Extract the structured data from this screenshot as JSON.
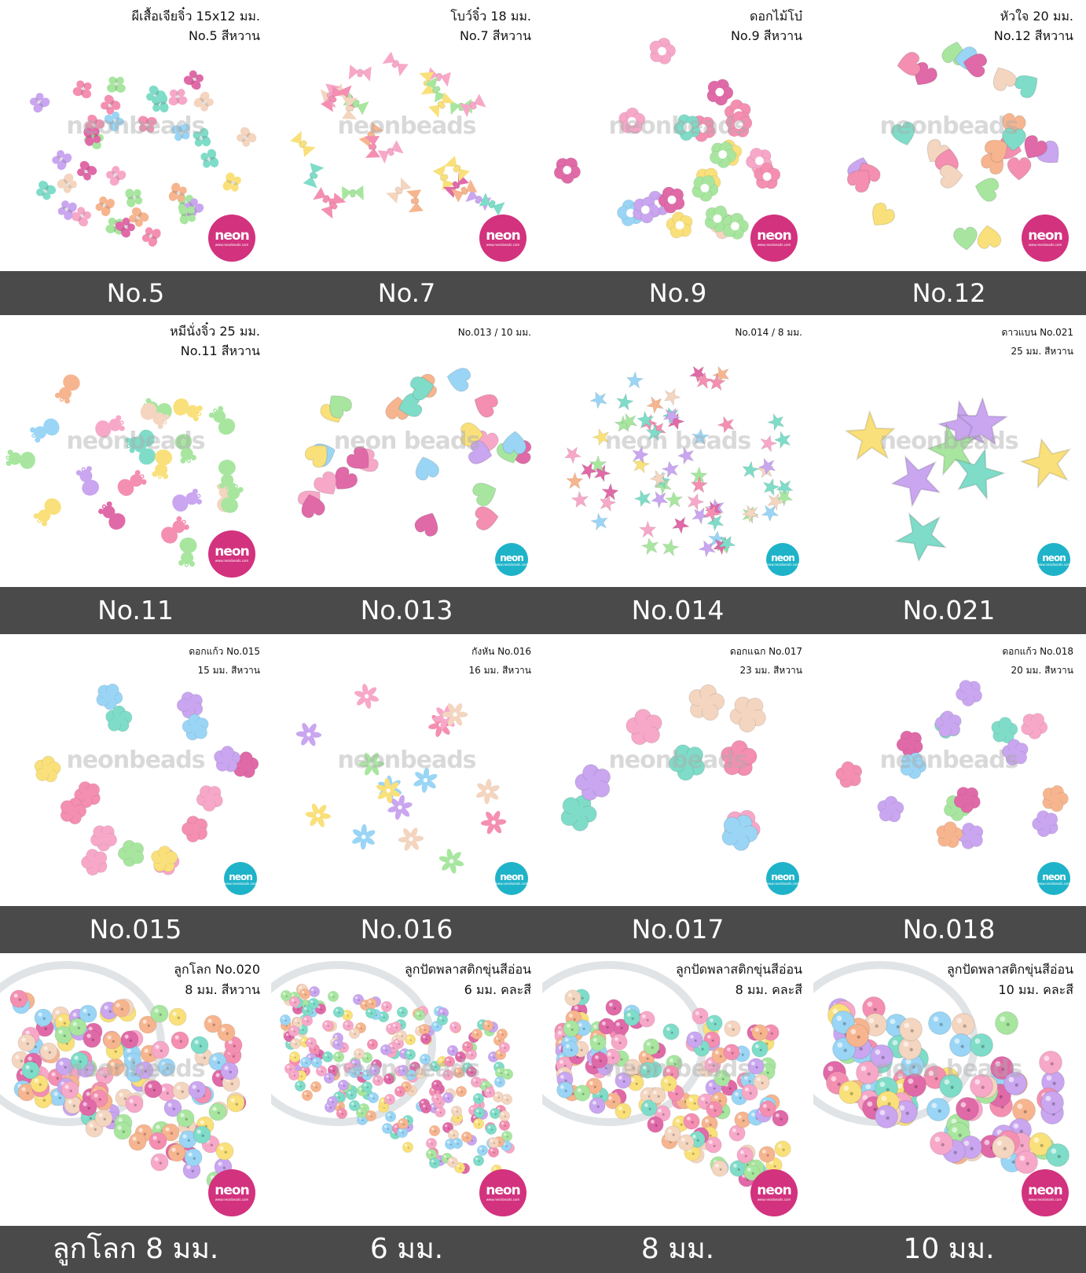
{
  "cells": [
    {
      "cap1": "ผีเสื้อเจียจิ๋ว 15x12 มม.",
      "cap2": "No.5 สีหวาน",
      "shape": "butterfly",
      "logo": "pink"
    },
    {
      "cap1": "โบว์จิ๋ว 18 มม.",
      "cap2": "No.7 สีหวาน",
      "shape": "bow",
      "logo": "pink"
    },
    {
      "cap1": "ดอกไม้โบ๋",
      "cap2": "No.9 สีหวาน",
      "shape": "ringflower",
      "logo": "pink"
    },
    {
      "cap1": "หัวใจ 20 มม.",
      "cap2": "No.12 สีหวาน",
      "shape": "heart",
      "logo": "pink"
    },
    {
      "cap1": "หมีนั่งจิ๋ว 25 มม.",
      "cap2": "No.11 สีหวาน",
      "shape": "bear",
      "logo": "pink"
    },
    {
      "cap1": "No.013 / 10 มม.",
      "cap2": "",
      "shape": "heart",
      "logo": "teal"
    },
    {
      "cap1": "No.014 / 8 มม.",
      "cap2": "",
      "shape": "star",
      "logo": "teal"
    },
    {
      "cap1": "ดาวแบน No.021",
      "cap2": "25 มม. สีหวาน",
      "shape": "bigstar",
      "logo": "teal"
    },
    {
      "cap1": "ดอกแก้ว No.015",
      "cap2": "15 มม. สีหวาน",
      "shape": "flower",
      "logo": "teal"
    },
    {
      "cap1": "กังหัน No.016",
      "cap2": "16 มม. สีหวาน",
      "shape": "spin",
      "logo": "teal"
    },
    {
      "cap1": "ดอกแฉก No.017",
      "cap2": "23 มม. สีหวาน",
      "shape": "bigflower",
      "logo": "teal"
    },
    {
      "cap1": "ดอกแก้ว No.018",
      "cap2": "20 มม. สีหวาน",
      "shape": "flower",
      "logo": "teal"
    },
    {
      "cap1": "ลูกโลก No.020",
      "cap2": "8 มม. สีหวาน",
      "shape": "ball",
      "logo": "pink"
    },
    {
      "cap1": "ลูกปัดพลาสติกขุ่นสีอ่อน",
      "cap2": "6 มม. คละสี",
      "shape": "ball",
      "logo": "pink"
    },
    {
      "cap1": "ลูกปัดพลาสติกขุ่นสีอ่อน",
      "cap2": "8 มม. คละสี",
      "shape": "ball",
      "logo": "pink"
    },
    {
      "cap1": "ลูกปัดพลาสติกขุ่นสีอ่อน",
      "cap2": "10 มม. คละสี",
      "shape": "ball",
      "logo": "pink"
    }
  ],
  "watermarks": [
    "neonbeads",
    "neonbeads",
    "neonbeads",
    "neonbeads",
    "neonbeads",
    "neon beads",
    "neon beads",
    "neonbeads",
    "neonbeads",
    "neonbeads",
    "neonbeads",
    "neonbeads",
    "neonbeads",
    "neon beads",
    "neon beads",
    "neon beads"
  ],
  "bars": [
    [
      "No.5",
      "No.7",
      "No.9",
      "No.12"
    ],
    [
      "No.11",
      "No.013",
      "No.014",
      "No.021"
    ],
    [
      "No.015",
      "No.016",
      "No.017",
      "No.018"
    ],
    [
      "ลูกโลก 8 มม.",
      "6 มม.",
      "8 มม.",
      "10 มม."
    ]
  ],
  "logo_brand": "neon",
  "logo_sub": "www.neonbeads.com",
  "colors": {
    "bar": "#4a4a4a",
    "pink_logo": "#d2327e",
    "teal_logo": "#1fb3c9",
    "beads": [
      "#f7a8c8",
      "#f48fb1",
      "#9ad5f5",
      "#7fdcc8",
      "#f9e07a",
      "#c9a6ef",
      "#f6b58f",
      "#f3d5c0",
      "#a8e6a0",
      "#e06aa8"
    ]
  }
}
